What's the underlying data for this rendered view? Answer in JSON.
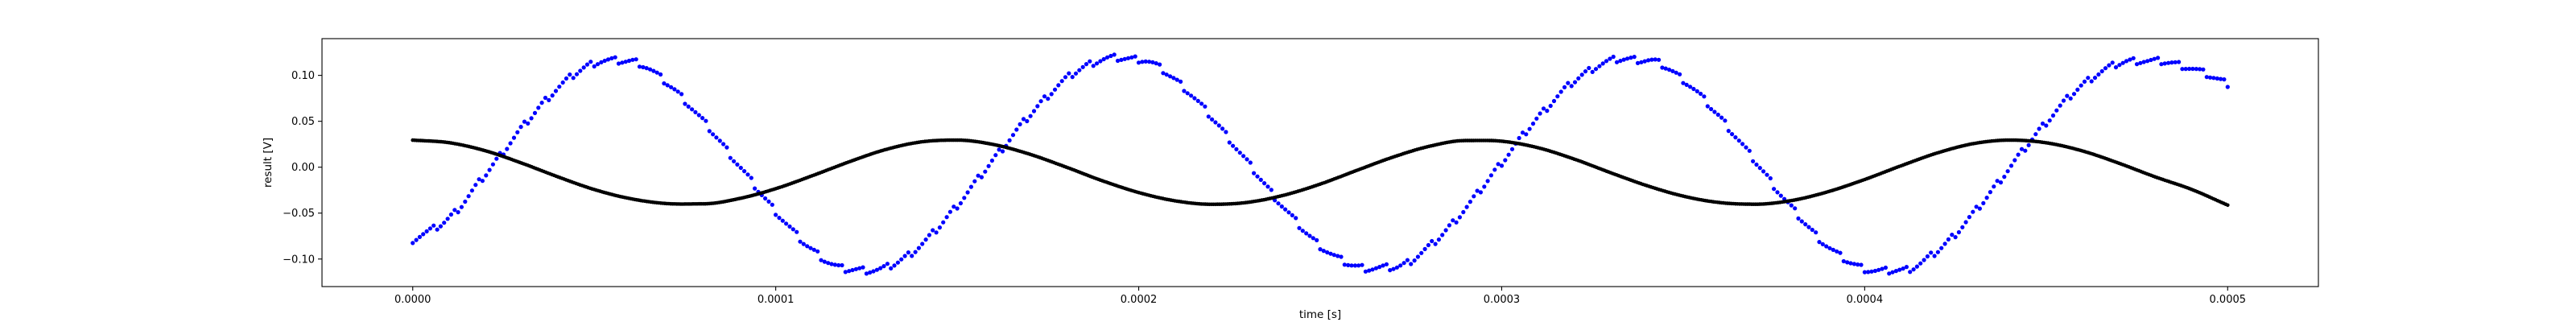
{
  "chart_data": {
    "type": "scatter",
    "title": "",
    "xlabel": "time [s]",
    "ylabel": "result [V]",
    "xlim": [
      -2.5e-05,
      0.000525
    ],
    "ylim": [
      -0.13,
      0.14
    ],
    "xticks": [
      {
        "value": 0.0,
        "label": "0.0000"
      },
      {
        "value": 0.0001,
        "label": "0.0001"
      },
      {
        "value": 0.0002,
        "label": "0.0002"
      },
      {
        "value": 0.0003,
        "label": "0.0003"
      },
      {
        "value": 0.0004,
        "label": "0.0004"
      },
      {
        "value": 0.0005,
        "label": "0.0005"
      }
    ],
    "yticks": [
      {
        "value": -0.1,
        "label": "−0.10"
      },
      {
        "value": -0.05,
        "label": "−0.05"
      },
      {
        "value": 0.0,
        "label": "0.00"
      },
      {
        "value": 0.05,
        "label": "0.05"
      },
      {
        "value": 0.1,
        "label": "0.10"
      }
    ],
    "grid": false,
    "legend": "none",
    "series": [
      {
        "color": "#0000ff",
        "marker": "dot",
        "points": [
          [
            0.0,
            -0.079
          ],
          [
            1e-05,
            -0.0555
          ],
          [
            2e-05,
            -0.0081
          ],
          [
            3e-05,
            0.0424
          ],
          [
            4e-05,
            0.0863
          ],
          [
            5e-05,
            0.1134
          ],
          [
            6e-05,
            0.1153
          ],
          [
            7e-05,
            0.0917
          ],
          [
            8e-05,
            0.0503
          ],
          [
            9e-05,
            0.0012
          ],
          [
            0.0001,
            -0.0483
          ],
          [
            0.00011,
            -0.0899
          ],
          [
            0.00012,
            -0.1113
          ],
          [
            0.00013,
            -0.1099
          ],
          [
            0.00014,
            -0.0849
          ],
          [
            0.00015,
            -0.0414
          ],
          [
            0.00016,
            0.0085
          ],
          [
            0.00017,
            0.0566
          ],
          [
            0.00018,
            0.0963
          ],
          [
            0.00019,
            0.1173
          ],
          [
            0.0002,
            0.1175
          ],
          [
            0.00021,
            0.0953
          ],
          [
            0.00022,
            0.0547
          ],
          [
            0.00023,
            0.0052
          ],
          [
            0.00024,
            -0.0442
          ],
          [
            0.00025,
            -0.0857
          ],
          [
            0.00026,
            -0.1082
          ],
          [
            0.00027,
            -0.1091
          ],
          [
            0.00028,
            -0.0866
          ],
          [
            0.00029,
            -0.0451
          ],
          [
            0.0003,
            0.0052
          ],
          [
            0.00031,
            0.0541
          ],
          [
            0.00032,
            0.0938
          ],
          [
            0.00033,
            0.1159
          ],
          [
            0.00034,
            0.1165
          ],
          [
            0.00035,
            0.0952
          ],
          [
            0.00036,
            0.0548
          ],
          [
            0.00037,
            0.0056
          ],
          [
            0.00038,
            -0.0448
          ],
          [
            0.00039,
            -0.0869
          ],
          [
            0.0004,
            -0.1107
          ],
          [
            0.00041,
            -0.1123
          ],
          [
            0.00042,
            -0.0913
          ],
          [
            0.00043,
            -0.0502
          ],
          [
            0.00044,
            -0.0003
          ],
          [
            0.00045,
            0.0489
          ],
          [
            0.00046,
            0.0896
          ],
          [
            0.00047,
            0.1129
          ],
          [
            0.00048,
            0.1155
          ],
          [
            0.00049,
            0.1076
          ],
          [
            0.0005,
            0.091
          ]
        ]
      },
      {
        "color": "#000000",
        "marker": "dot",
        "points": [
          [
            0.0,
            0.0295
          ],
          [
            1e-05,
            0.0267
          ],
          [
            2e-05,
            0.0179
          ],
          [
            3e-05,
            0.0045
          ],
          [
            4e-05,
            -0.0105
          ],
          [
            5e-05,
            -0.0243
          ],
          [
            6e-05,
            -0.0343
          ],
          [
            7e-05,
            -0.0396
          ],
          [
            8e-05,
            -0.0399
          ],
          [
            9e-05,
            -0.0341
          ],
          [
            0.0001,
            -0.0234
          ],
          [
            0.00011,
            -0.0094
          ],
          [
            0.00012,
            0.0055
          ],
          [
            0.00013,
            0.0189
          ],
          [
            0.00014,
            0.0275
          ],
          [
            0.00015,
            0.0295
          ],
          [
            0.00016,
            0.0247
          ],
          [
            0.00017,
            0.0141
          ],
          [
            0.00018,
            0.0001
          ],
          [
            0.00019,
            -0.0148
          ],
          [
            0.0002,
            -0.0276
          ],
          [
            0.00021,
            -0.0366
          ],
          [
            0.00022,
            -0.0404
          ],
          [
            0.00023,
            -0.0383
          ],
          [
            0.00024,
            -0.0305
          ],
          [
            0.00025,
            -0.0184
          ],
          [
            0.00026,
            -0.0036
          ],
          [
            0.00027,
            0.0109
          ],
          [
            0.00028,
            0.0227
          ],
          [
            0.00029,
            0.029
          ],
          [
            0.0003,
            0.0283
          ],
          [
            0.00031,
            0.0212
          ],
          [
            0.00032,
            0.0088
          ],
          [
            0.00033,
            -0.006
          ],
          [
            0.00034,
            -0.0201
          ],
          [
            0.00035,
            -0.0315
          ],
          [
            0.00036,
            -0.0385
          ],
          [
            0.00037,
            -0.0403
          ],
          [
            0.00038,
            -0.0362
          ],
          [
            0.00039,
            -0.0266
          ],
          [
            0.0004,
            -0.0134
          ],
          [
            0.00041,
            0.0015
          ],
          [
            0.00042,
            0.0155
          ],
          [
            0.00043,
            0.0257
          ],
          [
            0.00044,
            0.0295
          ],
          [
            0.00045,
            0.0266
          ],
          [
            0.00046,
            0.0177
          ],
          [
            0.00047,
            0.0044
          ],
          [
            0.00048,
            -0.0105
          ],
          [
            0.00049,
            -0.0241
          ],
          [
            0.0005,
            -0.0413
          ]
        ]
      }
    ]
  }
}
